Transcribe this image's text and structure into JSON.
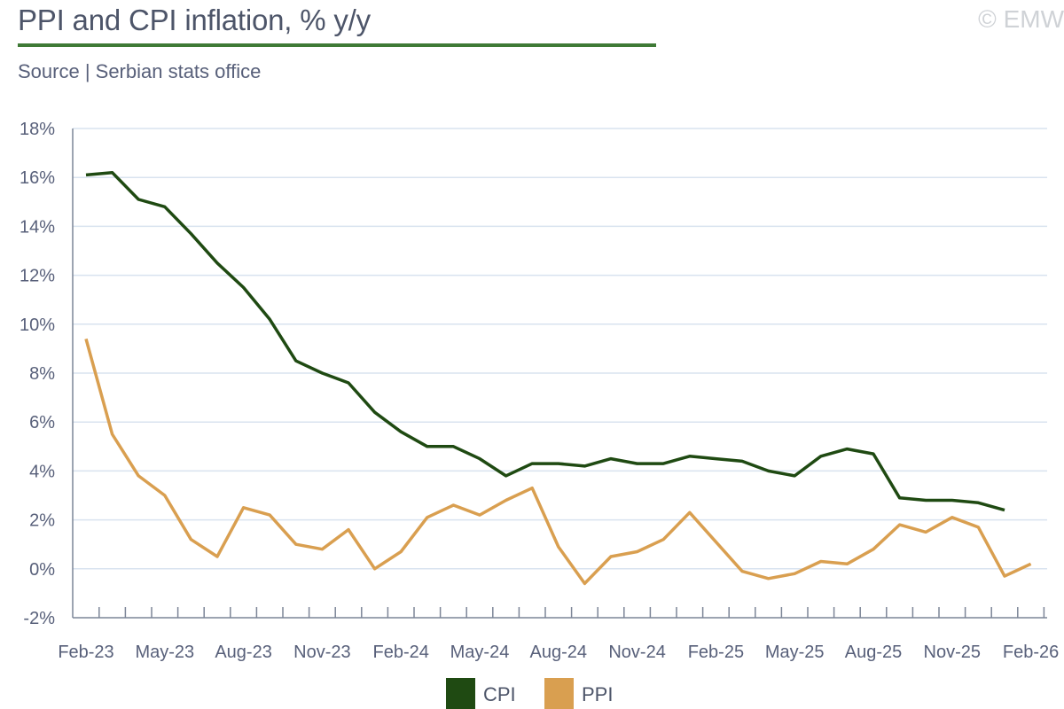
{
  "header": {
    "title": "PPI and CPI inflation, % y/y",
    "source": "Source | Serbian stats office",
    "copyright": "© EMW"
  },
  "chart_data": {
    "type": "line",
    "title": "PPI and CPI inflation, % y/y",
    "xlabel": "",
    "ylabel": "",
    "ylim": [
      -2,
      18
    ],
    "y_ticks": [
      -2,
      0,
      2,
      4,
      6,
      8,
      10,
      12,
      14,
      16,
      18
    ],
    "y_tick_labels": [
      "-2%",
      "0%",
      "2%",
      "4%",
      "6%",
      "8%",
      "10%",
      "12%",
      "14%",
      "16%",
      "18%"
    ],
    "x_tick_labels": [
      "Feb-23",
      "May-23",
      "Aug-23",
      "Nov-23",
      "Feb-24",
      "May-24",
      "Aug-24",
      "Nov-24",
      "Feb-25",
      "May-25",
      "Aug-25",
      "Nov-25",
      "Feb-26"
    ],
    "x": [
      "Feb-23",
      "Mar-23",
      "Apr-23",
      "May-23",
      "Jun-23",
      "Jul-23",
      "Aug-23",
      "Sep-23",
      "Oct-23",
      "Nov-23",
      "Dec-23",
      "Jan-24",
      "Feb-24",
      "Mar-24",
      "Apr-24",
      "May-24",
      "Jun-24",
      "Jul-24",
      "Aug-24",
      "Sep-24",
      "Oct-24",
      "Nov-24",
      "Dec-24",
      "Jan-25",
      "Feb-25",
      "Mar-25",
      "Apr-25",
      "May-25",
      "Jun-25",
      "Jul-25",
      "Aug-25",
      "Sep-25",
      "Oct-25",
      "Nov-25",
      "Dec-25",
      "Jan-26",
      "Feb-26"
    ],
    "grid": true,
    "legend_position": "bottom-center",
    "series": [
      {
        "name": "CPI",
        "color": "#1f4a12",
        "values": [
          16.1,
          16.2,
          15.1,
          14.8,
          13.7,
          12.5,
          11.5,
          10.2,
          8.5,
          8.0,
          7.6,
          6.4,
          5.6,
          5.0,
          5.0,
          4.5,
          3.8,
          4.3,
          4.3,
          4.2,
          4.5,
          4.3,
          4.3,
          4.6,
          4.5,
          4.4,
          4.0,
          3.8,
          4.6,
          4.9,
          4.7,
          2.9,
          2.8,
          2.8,
          2.7,
          2.4,
          null
        ]
      },
      {
        "name": "PPI",
        "color": "#d99f50",
        "values": [
          9.4,
          5.5,
          3.8,
          3.0,
          1.2,
          0.5,
          2.5,
          2.2,
          1.0,
          0.8,
          1.6,
          0.0,
          0.7,
          2.1,
          2.6,
          2.2,
          2.8,
          3.3,
          0.9,
          -0.6,
          0.5,
          0.7,
          1.2,
          2.3,
          1.1,
          -0.1,
          -0.4,
          -0.2,
          0.3,
          0.2,
          0.8,
          1.8,
          1.5,
          2.1,
          1.7,
          -0.3,
          0.2
        ]
      }
    ]
  },
  "colors": {
    "title_rule": "#3f7a36",
    "grid": "#d9e3ef",
    "axis": "#7c8597",
    "cpi": "#1f4a12",
    "ppi": "#d99f50"
  }
}
